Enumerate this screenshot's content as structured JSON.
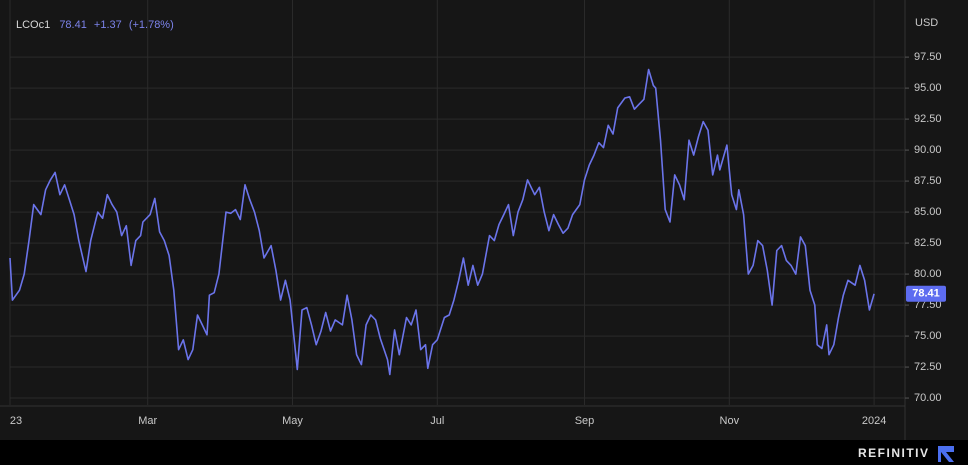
{
  "header": {
    "symbol": "LCOc1",
    "price": "78.41",
    "change": "+1.37",
    "change_pct": "(+1.78%)",
    "brand": "REFINITIV"
  },
  "chart_data": {
    "type": "line",
    "y_axis_label": "USD",
    "xlim": [
      1,
      378
    ],
    "ylim": [
      69.44,
      101.3
    ],
    "xticks": [
      {
        "value": 1,
        "label": "23"
      },
      {
        "value": 59,
        "label": "Mar"
      },
      {
        "value": 120,
        "label": "May"
      },
      {
        "value": 181,
        "label": "Jul"
      },
      {
        "value": 243,
        "label": "Sep"
      },
      {
        "value": 304,
        "label": "Nov"
      },
      {
        "value": 365,
        "label": "2024"
      }
    ],
    "yticks": [
      {
        "value": 70,
        "label": "70.00"
      },
      {
        "value": 72.5,
        "label": "72.50"
      },
      {
        "value": 75,
        "label": "75.00"
      },
      {
        "value": 77.5,
        "label": "77.50"
      },
      {
        "value": 80,
        "label": "80.00"
      },
      {
        "value": 82.5,
        "label": "82.50"
      },
      {
        "value": 85,
        "label": "85.00"
      },
      {
        "value": 87.5,
        "label": "87.50"
      },
      {
        "value": 90,
        "label": "90.00"
      },
      {
        "value": 92.5,
        "label": "92.50"
      },
      {
        "value": 95,
        "label": "95.00"
      },
      {
        "value": 97.5,
        "label": "97.50"
      }
    ],
    "grid": true,
    "series": [
      {
        "name": "LCOc1",
        "color": "#6b74ea",
        "x": [
          1,
          2,
          5,
          7,
          9,
          11,
          14,
          16,
          18,
          20,
          22,
          24,
          26,
          28,
          30,
          33,
          35,
          38,
          40,
          42,
          44,
          46,
          48,
          50,
          52,
          54,
          56,
          57,
          60,
          62,
          64,
          66,
          68,
          70,
          72,
          74,
          76,
          78,
          80,
          82,
          84,
          85,
          87,
          89,
          92,
          94,
          96,
          98,
          100,
          102,
          104,
          106,
          108,
          111,
          113,
          115,
          117,
          119,
          122,
          124,
          126,
          128,
          130,
          132,
          134,
          136,
          138,
          141,
          143,
          145,
          147,
          149,
          151,
          153,
          155,
          157,
          160,
          161,
          163,
          165,
          168,
          170,
          172,
          174,
          176,
          177,
          179,
          181,
          184,
          186,
          188,
          190,
          192,
          194,
          196,
          198,
          200,
          203,
          205,
          207,
          209,
          211,
          213,
          215,
          217,
          219,
          222,
          224,
          226,
          228,
          230,
          232,
          234,
          236,
          238,
          241,
          243,
          245,
          247,
          249,
          251,
          253,
          255,
          257,
          260,
          262,
          264,
          266,
          268,
          270,
          272,
          273,
          275,
          277,
          279,
          281,
          283,
          285,
          287,
          289,
          291,
          293,
          295,
          297,
          299,
          300,
          303,
          305,
          307,
          308,
          310,
          312,
          314,
          316,
          318,
          320,
          322,
          324,
          326,
          328,
          330,
          332,
          334,
          336,
          338,
          340,
          341,
          343,
          345,
          346,
          348,
          350,
          352,
          354,
          357,
          359,
          361,
          363,
          365
        ],
        "values": [
          81.3,
          77.9,
          78.7,
          80,
          82.7,
          85.6,
          84.8,
          86.8,
          87.6,
          88.2,
          86.4,
          87.2,
          86,
          84.8,
          82.7,
          80.2,
          82.7,
          85,
          84.5,
          86.4,
          85.6,
          85,
          83.1,
          83.9,
          80.7,
          82.7,
          83.1,
          84.2,
          84.8,
          86.1,
          83.4,
          82.7,
          81.5,
          78.7,
          73.9,
          74.7,
          73.1,
          73.9,
          76.7,
          75.9,
          75.1,
          78.3,
          78.5,
          80,
          85,
          84.9,
          85.2,
          84.4,
          87.2,
          86,
          85,
          83.5,
          81.3,
          82.3,
          80.3,
          77.9,
          79.5,
          77.9,
          72.3,
          77.1,
          77.3,
          75.9,
          74.3,
          75.4,
          76.9,
          75.4,
          76.3,
          75.9,
          78.3,
          76.3,
          73.5,
          72.7,
          75.9,
          76.7,
          76.3,
          74.8,
          73.1,
          71.9,
          75.5,
          73.5,
          76.5,
          75.9,
          77.1,
          73.9,
          74.3,
          72.4,
          74.3,
          74.7,
          76.5,
          76.7,
          77.9,
          79.5,
          81.3,
          79.1,
          80.7,
          79.1,
          80,
          83.1,
          82.7,
          84,
          84.8,
          85.6,
          83.1,
          85,
          86,
          87.6,
          86.4,
          87,
          85,
          83.5,
          84.8,
          84,
          83.3,
          83.7,
          84.8,
          85.6,
          87.6,
          88.8,
          89.6,
          90.6,
          90.2,
          92,
          91.3,
          93.4,
          94.2,
          94.3,
          93.3,
          93.7,
          94.1,
          96.5,
          95.2,
          95,
          90.8,
          85.2,
          84.2,
          88,
          87.2,
          86,
          90.8,
          89.6,
          91.1,
          92.3,
          91.6,
          88,
          89.6,
          88.4,
          90.4,
          86.4,
          85.2,
          86.8,
          84.8,
          80,
          80.7,
          82.7,
          82.3,
          80.3,
          77.5,
          81.9,
          82.3,
          81.1,
          80.7,
          80,
          83,
          82.3,
          78.7,
          77.5,
          74.3,
          74,
          75.9,
          73.5,
          74.3,
          76.5,
          78.3,
          79.5,
          79.1,
          80.7,
          79.5,
          77.1,
          78.41
        ]
      }
    ]
  }
}
